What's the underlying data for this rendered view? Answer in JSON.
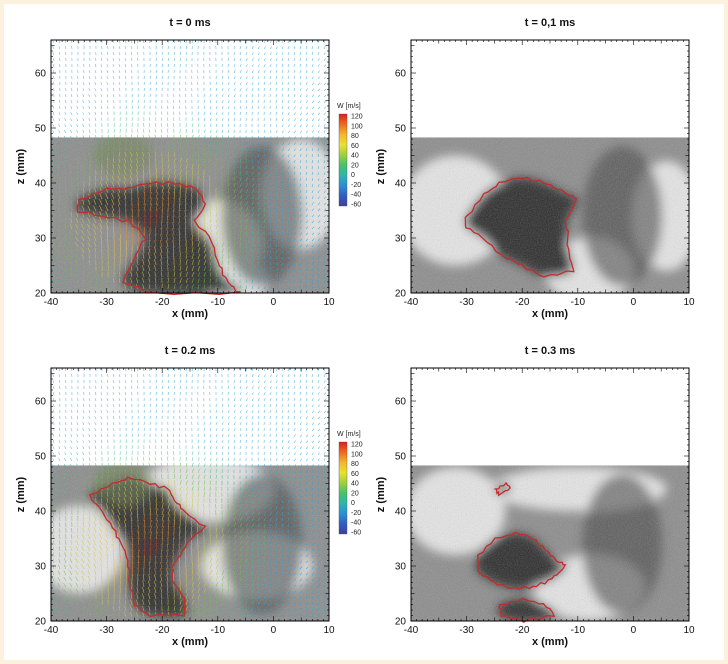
{
  "figure": {
    "panels": [
      {
        "id": "p0",
        "title": "t = 0 ms",
        "x_label": "x (mm)",
        "z_label": "z (mm)",
        "has_vectors": true,
        "colorbar": {
          "title": "W [m/s]",
          "ticks": [
            "120",
            "100",
            "80",
            "60",
            "40",
            "20",
            "0",
            "-20",
            "-40",
            "-60"
          ]
        }
      },
      {
        "id": "p1",
        "title": "t = 0,1 ms",
        "x_label": "x (mm)",
        "z_label": "z (mm)",
        "has_vectors": false,
        "colorbar": null
      },
      {
        "id": "p2",
        "title": "t = 0.2 ms",
        "x_label": "x (mm)",
        "z_label": "z (mm)",
        "has_vectors": true,
        "colorbar": {
          "title": "W [m/s]",
          "ticks": [
            "120",
            "100",
            "80",
            "60",
            "40",
            "20",
            "0",
            "-20",
            "-40",
            "-60"
          ]
        }
      },
      {
        "id": "p3",
        "title": "t = 0.3 ms",
        "x_label": "x (mm)",
        "z_label": "z (mm)",
        "has_vectors": false,
        "colorbar": null
      }
    ],
    "x_ticks": [
      "-40",
      "-30",
      "-20",
      "-10",
      "0",
      "10"
    ],
    "z_ticks": [
      "20",
      "30",
      "40",
      "50",
      "60"
    ],
    "x_range": [
      -40,
      10
    ],
    "z_range": [
      20,
      66
    ],
    "image_top_z": 48.3,
    "colors": {
      "contour": "#c42b2b",
      "dark_region": "#262626",
      "bright_region": "#e6e6e6",
      "mid_region": "#8a8a8a"
    }
  }
}
